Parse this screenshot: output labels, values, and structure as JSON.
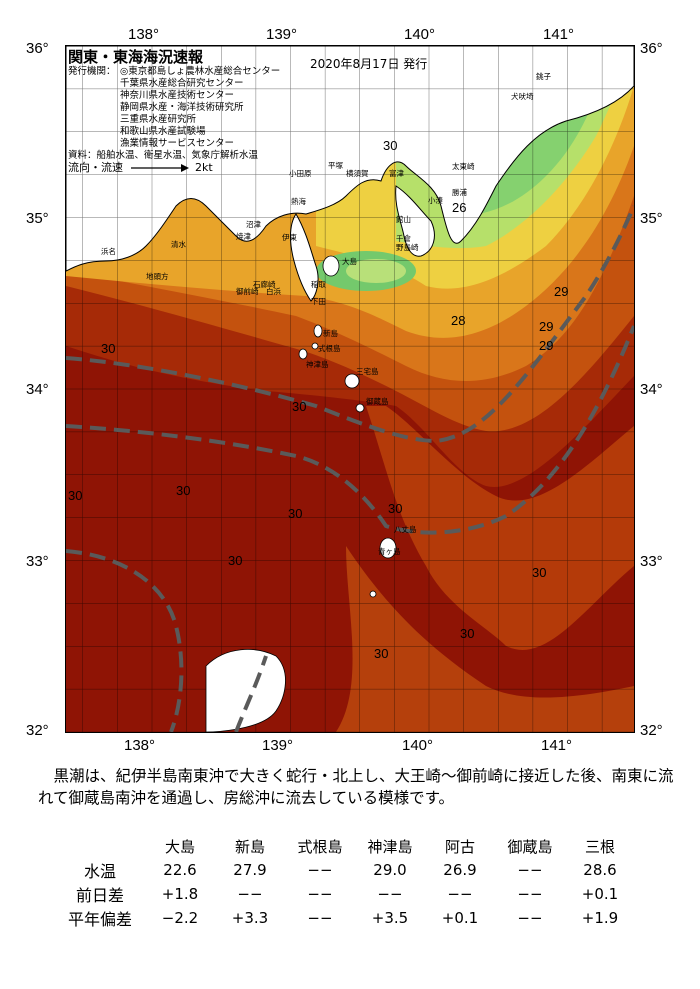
{
  "map": {
    "title": "関東・東海海況速報",
    "issued": "2020年8月17日 発行",
    "issuer_label": "発行機関：",
    "issuers": [
      "◎東京都島しょ農林水産総合センター",
      "千葉県水産総合研究センター",
      "神奈川県水産技術センター",
      "静岡県水産・海洋技術研究所",
      "三重県水産研究所",
      "和歌山県水産試験場",
      "漁業情報サービスセンター"
    ],
    "source": "資料：船舶水温、衛星水温、気象庁解析水温",
    "flow_label": "流向・流速",
    "flow_scale": "2kt",
    "lon_ticks": [
      "138°",
      "139°",
      "140°",
      "141°"
    ],
    "lat_ticks": [
      "36°",
      "35°",
      "34°",
      "33°",
      "32°"
    ],
    "contour_labels": [
      "30",
      "30",
      "30",
      "30",
      "30",
      "30",
      "30",
      "30",
      "30",
      "30",
      "30",
      "29",
      "29",
      "29",
      "28",
      "26"
    ],
    "places": [
      "犬吠埼",
      "太東崎",
      "勝浦",
      "小湊",
      "館山",
      "千倉",
      "野島崎",
      "富津",
      "横須賀",
      "平塚",
      "小田原",
      "伊東",
      "大島",
      "新島",
      "式根島",
      "神津島",
      "三宅島",
      "御蔵島",
      "八丈島",
      "青ヶ島",
      "焼津",
      "御前崎",
      "地頭方",
      "浜名",
      "清水",
      "沼津",
      "石廊崎",
      "下田",
      "稲取",
      "熱海",
      "銚子",
      "白浜"
    ]
  },
  "description": "黒潮は、紀伊半島南東沖で大きく蛇行・北上し、大王崎～御前崎に接近した後、南東に流れて御蔵島南沖を通過し、房総沖に流去している模様です。",
  "stats": {
    "columns": [
      "大島",
      "新島",
      "式根島",
      "神津島",
      "阿古",
      "御蔵島",
      "三根"
    ],
    "rows": [
      {
        "label": "水温",
        "values": [
          "22.6",
          "27.9",
          "−−",
          "29.0",
          "26.9",
          "−−",
          "28.6"
        ]
      },
      {
        "label": "前日差",
        "values": [
          "+1.8",
          "−−",
          "−−",
          "−−",
          "−−",
          "−−",
          "+0.1"
        ]
      },
      {
        "label": "平年偏差",
        "values": [
          "−2.2",
          "+3.3",
          "−−",
          "+3.5",
          "+0.1",
          "−−",
          "+1.9"
        ]
      }
    ]
  }
}
